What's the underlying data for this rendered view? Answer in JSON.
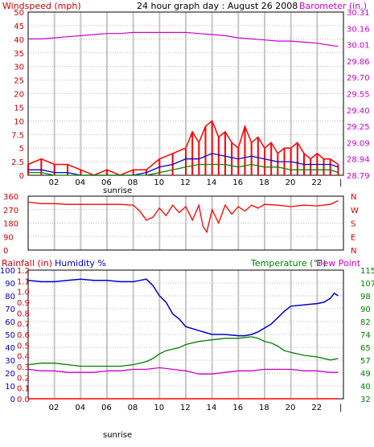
{
  "colors": {
    "wind": "#ff0000",
    "gust_fill": "#ff0000",
    "wind_blue": "#0000cc",
    "wind_green": "#008800",
    "barometer": "#cc00cc",
    "direction": "#ff0000",
    "humidity": "#0000cc",
    "temperature": "#008000",
    "dewpoint": "#cc00cc",
    "rainfall": "#ff0000",
    "frame": "#000000",
    "grid": "#c8c8c8"
  },
  "chart_data": [
    {
      "type": "line",
      "title": "24 hour graph day : August 26 2008",
      "ylabel_left": "Windspeed (mph)",
      "ylabel_right": "Barometer (in.)",
      "x_ticks": [
        "02",
        "04",
        "06",
        "08",
        "10",
        "12",
        "14",
        "16",
        "18",
        "20",
        "22"
      ],
      "x_marker": "sunrise",
      "x_end_mark": "|",
      "ylim": [
        0,
        50
      ],
      "yticks": [
        "0",
        "2.5",
        "5",
        "7.5",
        "10",
        "15",
        "20",
        "25",
        "30",
        "35",
        "40",
        "45",
        "50"
      ],
      "yticks_values": [
        0,
        2.5,
        5,
        7.5,
        10,
        15,
        20,
        25,
        30,
        35,
        40,
        45,
        50
      ],
      "ylim_right": [
        28.79,
        30.31
      ],
      "yticks_right": [
        "28.79",
        "28.94",
        "29.09",
        "29.25",
        "29.40",
        "29.55",
        "29.70",
        "29.86",
        "30.01",
        "30.16",
        "30.31"
      ],
      "x_range_hours": [
        0,
        24
      ],
      "series": [
        {
          "name": "Barometer",
          "axis": "right",
          "x": [
            0,
            1,
            2,
            3,
            4,
            5,
            6,
            7,
            8,
            9,
            10,
            11,
            12,
            13,
            14,
            15,
            16,
            17,
            18,
            19,
            20,
            21,
            22,
            23,
            23.6
          ],
          "values": [
            30.06,
            30.06,
            30.07,
            30.08,
            30.09,
            30.1,
            30.11,
            30.11,
            30.12,
            30.12,
            30.12,
            30.12,
            30.12,
            30.11,
            30.1,
            30.09,
            30.07,
            30.06,
            30.05,
            30.04,
            30.04,
            30.03,
            30.02,
            30.0,
            29.99
          ]
        },
        {
          "name": "Wind gust",
          "x": [
            0,
            1,
            2,
            3,
            4,
            5,
            6,
            7,
            8,
            9,
            10,
            11,
            12,
            12.5,
            13,
            13.5,
            14,
            14.5,
            15,
            15.5,
            16,
            16.5,
            17,
            17.5,
            18,
            18.5,
            19,
            19.5,
            20,
            20.5,
            21,
            21.5,
            22,
            22.5,
            23,
            23.6
          ],
          "values": [
            2,
            3,
            2,
            2,
            1,
            0,
            1,
            0,
            1,
            1,
            3,
            4,
            5,
            8,
            6,
            9,
            10,
            7,
            8,
            6,
            5,
            9,
            6,
            7,
            5,
            6,
            4,
            5,
            5,
            6,
            4,
            3,
            4,
            3,
            3,
            2
          ]
        },
        {
          "name": "Wind average",
          "x": [
            0,
            1,
            2,
            3,
            4,
            5,
            6,
            7,
            8,
            9,
            10,
            11,
            12,
            13,
            14,
            15,
            16,
            17,
            18,
            19,
            20,
            21,
            22,
            23,
            23.6
          ],
          "values": [
            1,
            1,
            0.5,
            0.5,
            0,
            0,
            0,
            0,
            0,
            0.5,
            1.5,
            2,
            3,
            3,
            4,
            3.5,
            3,
            3.5,
            3,
            2.5,
            2.5,
            2,
            2,
            2,
            1.5
          ]
        },
        {
          "name": "Wind low",
          "x": [
            0,
            1,
            2,
            3,
            4,
            5,
            6,
            7,
            8,
            9,
            10,
            11,
            12,
            13,
            14,
            15,
            16,
            17,
            18,
            19,
            20,
            21,
            22,
            23,
            23.6
          ],
          "values": [
            0.5,
            0.5,
            0,
            0,
            0,
            0,
            0,
            0,
            0,
            0,
            0.5,
            1,
            1.5,
            2,
            2,
            2,
            1.5,
            2,
            1.5,
            1.5,
            1,
            1,
            1,
            1,
            0.5
          ]
        }
      ]
    },
    {
      "type": "line",
      "yticks": [
        "360",
        "270",
        "180",
        "90",
        "0"
      ],
      "yticks_values": [
        360,
        270,
        180,
        90,
        0
      ],
      "ylabels_right": [
        "N",
        "W",
        "S",
        "E",
        "N"
      ],
      "ylim": [
        0,
        360
      ],
      "series": [
        {
          "name": "Wind direction",
          "x": [
            0,
            1,
            2,
            3,
            4,
            5,
            6,
            7,
            8,
            8.5,
            9,
            9.5,
            10,
            10.5,
            11,
            11.5,
            12,
            12.5,
            13,
            13.3,
            13.6,
            14,
            14.5,
            15,
            15.5,
            16,
            16.5,
            17,
            17.5,
            18,
            19,
            20,
            21,
            22,
            23,
            23.6
          ],
          "values": [
            320,
            310,
            310,
            305,
            305,
            305,
            305,
            305,
            300,
            260,
            200,
            220,
            280,
            230,
            300,
            250,
            290,
            200,
            300,
            160,
            120,
            270,
            180,
            300,
            240,
            290,
            260,
            300,
            280,
            305,
            300,
            290,
            300,
            295,
            305,
            330
          ]
        }
      ]
    },
    {
      "type": "line",
      "ylabel_left": "Rainfall (in)",
      "ylabel_left2": "Humidity %",
      "ylabel_right": "Temperature (°F)",
      "ylabel_right2": "Dew Point",
      "x_ticks": [
        "02",
        "04",
        "06",
        "08",
        "10",
        "12",
        "14",
        "16",
        "18",
        "20",
        "22"
      ],
      "x_marker": "sunrise",
      "x_end_mark": "|",
      "yticks_humidity": [
        "0",
        "10",
        "20",
        "30",
        "40",
        "50",
        "60",
        "70",
        "80",
        "90",
        "100"
      ],
      "yticks_rain": [
        "0.0",
        "0.1",
        "0.2",
        "0.3",
        "0.4",
        "0.5",
        "0.6",
        "0.7",
        "0.8",
        "0.9",
        "1.0",
        "1.1",
        "1.2"
      ],
      "yticks_temp": [
        "32",
        "40",
        "49",
        "57",
        "65",
        "74",
        "82",
        "90",
        "98",
        "107",
        "115"
      ],
      "ylim_humidity": [
        0,
        100
      ],
      "ylim_rain": [
        0,
        1.2
      ],
      "ylim_temp": [
        32,
        115
      ],
      "series": [
        {
          "name": "Humidity",
          "x": [
            0,
            1,
            2,
            3,
            4,
            5,
            6,
            7,
            8,
            8.5,
            9,
            9.5,
            10,
            10.5,
            11,
            11.5,
            12,
            13,
            14,
            15,
            16,
            16.5,
            17,
            17.5,
            18,
            18.5,
            19,
            19.5,
            20,
            21,
            22,
            22.5,
            23,
            23.3,
            23.6
          ],
          "values": [
            92,
            91,
            91,
            92,
            93,
            92,
            92,
            91,
            91,
            92,
            93,
            88,
            80,
            75,
            66,
            62,
            56,
            53,
            50,
            50,
            49,
            49,
            50,
            52,
            55,
            58,
            63,
            68,
            72,
            73,
            74,
            75,
            78,
            82,
            80
          ]
        },
        {
          "name": "Temperature",
          "x": [
            0,
            1,
            2,
            3,
            4,
            5,
            6,
            7,
            8,
            8.5,
            9,
            9.5,
            10,
            10.5,
            11,
            11.5,
            12,
            13,
            14,
            15,
            16,
            17,
            17.5,
            18,
            18.5,
            19,
            19.5,
            20,
            21,
            22,
            23,
            23.6
          ],
          "values": [
            54,
            55,
            55,
            54,
            53,
            53,
            53,
            53,
            54,
            55,
            56,
            58,
            61,
            63,
            64,
            65,
            67,
            69,
            70,
            71,
            71,
            72,
            71,
            69,
            68,
            66,
            63,
            62,
            60,
            59,
            57,
            58
          ]
        },
        {
          "name": "Dew Point",
          "x": [
            0,
            1,
            2,
            3,
            4,
            5,
            6,
            7,
            8,
            9,
            10,
            11,
            12,
            13,
            14,
            15,
            16,
            17,
            18,
            19,
            20,
            21,
            22,
            23,
            23.6
          ],
          "values": [
            51,
            50,
            50,
            49,
            49,
            49,
            50,
            50,
            51,
            51,
            52,
            51,
            50,
            48,
            48,
            49,
            50,
            50,
            51,
            51,
            51,
            50,
            50,
            49,
            49
          ]
        },
        {
          "name": "Rainfall",
          "x": [
            0,
            23.6
          ],
          "values": [
            0,
            0
          ]
        }
      ]
    }
  ]
}
